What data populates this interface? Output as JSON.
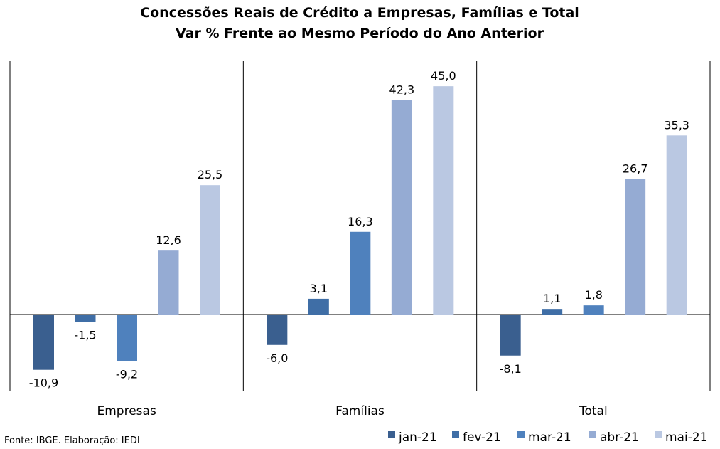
{
  "chart_data": {
    "type": "bar",
    "title": "Concessões Reais de Crédito a Empresas, Famílias e Total",
    "subtitle": "Var % Frente ao Mesmo Período do Ano Anterior",
    "categories": [
      "Empresas",
      "Famílias",
      "Total"
    ],
    "series": [
      {
        "name": "jan-21",
        "color": "#3A5F8F",
        "values": [
          -10.9,
          -6.0,
          -8.1
        ],
        "labels": [
          "-10,9",
          "-6,0",
          "-8,1"
        ]
      },
      {
        "name": "fev-21",
        "color": "#3F6EA6",
        "values": [
          -1.5,
          3.1,
          1.1
        ],
        "labels": [
          "-1,5",
          "3,1",
          "1,1"
        ]
      },
      {
        "name": "mar-21",
        "color": "#4F81BD",
        "values": [
          -9.2,
          16.3,
          1.8
        ],
        "labels": [
          "-9,2",
          "16,3",
          "1,8"
        ]
      },
      {
        "name": "abr-21",
        "color": "#95ABD3",
        "values": [
          12.6,
          42.3,
          26.7
        ],
        "labels": [
          "12,6",
          "42,3",
          "26,7"
        ]
      },
      {
        "name": "mai-21",
        "color": "#BAC8E2",
        "values": [
          25.5,
          45.0,
          35.3
        ],
        "labels": [
          "25,5",
          "45,0",
          "35,3"
        ]
      }
    ],
    "ylim": [
      -15,
      50
    ],
    "grid": false,
    "legend": "bottom-right",
    "source": "Fonte: IBGE. Elaboração: IEDI"
  }
}
